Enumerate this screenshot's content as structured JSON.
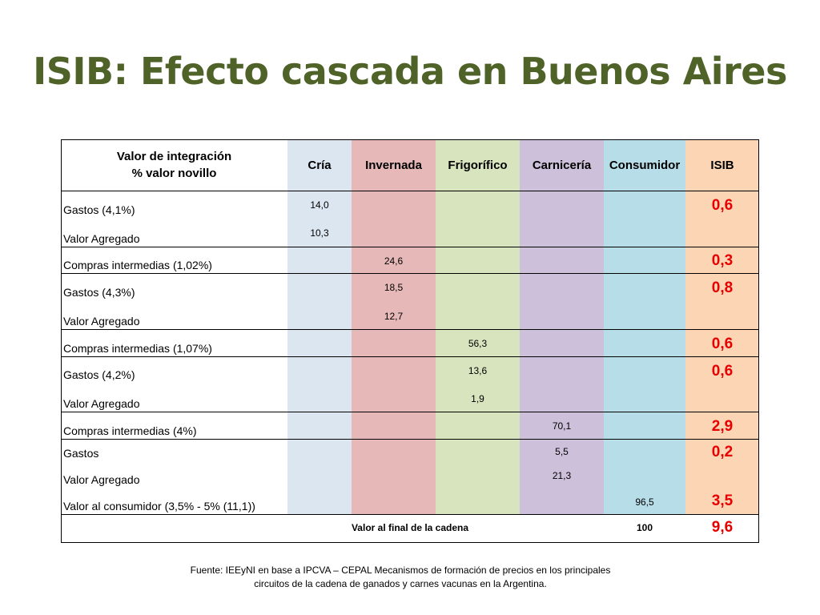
{
  "title": "ISIB: Efecto cascada en Buenos Aires",
  "colors": {
    "title": "#4f6228",
    "isib_text": "#e60000",
    "cria": "#dce6f1",
    "invernada": "#e6b9b8",
    "frigorifico": "#d7e4bd",
    "carniceria": "#ccc0da",
    "consumidor": "#b7dee8",
    "isib": "#fcd5b5"
  },
  "table": {
    "header_label_line1": "Valor de integración",
    "header_label_line2": "% valor novillo",
    "columns": [
      "Cría",
      "Invernada",
      "Frigorífico",
      "Carnicería",
      "Consumidor",
      "ISIB"
    ],
    "rows": [
      {
        "label": "Gastos  (4,1%)",
        "value": "14,0",
        "isib": "0,6"
      },
      {
        "label": "Valor Agregado",
        "value": "10,3",
        "isib": ""
      },
      {
        "label": "Compras intermedias (1,02%)",
        "value": "24,6",
        "isib": "0,3"
      },
      {
        "label": "Gastos  (4,3%)",
        "value": "18,5",
        "isib": "0,8"
      },
      {
        "label": "Valor Agregado",
        "value": "12,7",
        "isib": ""
      },
      {
        "label": "Compras intermedias (1,07%)",
        "value": "56,3",
        "isib": "0,6"
      },
      {
        "label": "Gastos  (4,2%)",
        "value": "13,6",
        "isib": "0,6"
      },
      {
        "label": "Valor Agregado",
        "value": "1,9",
        "isib": ""
      },
      {
        "label": "Compras intermedias (4%)",
        "value": "70,1",
        "isib": "2,9"
      },
      {
        "label": "Gastos",
        "value": "5,5",
        "isib": "0,2"
      },
      {
        "label": "Valor Agregado",
        "value": "21,3",
        "isib": ""
      },
      {
        "label": "Valor al  consumidor (3,5% - 5% (11,1))",
        "value": "96,5",
        "isib": "3,5"
      }
    ],
    "footer_label": "Valor al final de la cadena",
    "footer_value": "100",
    "footer_isib": "9,6"
  },
  "source_line1": "Fuente: IEEyNI en base a  IPCVA – CEPAL Mecanismos de formación de precios  en los principales",
  "source_line2": "circuitos de la  cadena de ganados y carnes vacunas en la Argentina."
}
